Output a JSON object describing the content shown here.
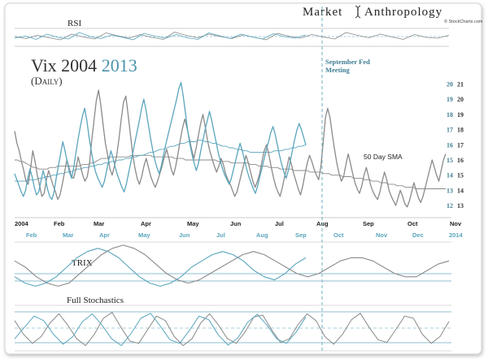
{
  "brand": {
    "word1": "Market",
    "word2": "Anthropology",
    "credit": "© StockCharts.com"
  },
  "colors": {
    "gray": "#8a8a8a",
    "blue": "#5aa5bd",
    "dark_blue": "#3f7f95",
    "frame": "#c8c8c8",
    "text": "#222222"
  },
  "chart_data": [
    {
      "type": "line",
      "panel": "main",
      "title": "Vix 2004",
      "title_accent": "2013",
      "subtitle": "(Daily)",
      "x_labels_2004": [
        "2004",
        "Feb",
        "Mar",
        "Apr",
        "May",
        "Jun",
        "Jul",
        "Aug",
        "Sep",
        "Oct",
        "Nov"
      ],
      "x_labels_2013": [
        "Feb",
        "Mar",
        "Apr",
        "May",
        "Jun",
        "Jul",
        "Aug",
        "Sep",
        "Oct",
        "Nov",
        "Dec",
        "2014"
      ],
      "y_ticks_2004": [
        13,
        14,
        15,
        16,
        17,
        18,
        19,
        20,
        21
      ],
      "y_ticks_2013": [
        12,
        13,
        14,
        15,
        16,
        17,
        18,
        19,
        20
      ],
      "ylim_2004": [
        12.2,
        21.4
      ],
      "ylim_2013": [
        11.2,
        20.4
      ],
      "annotations": [
        {
          "text1": "September Fed",
          "text2": "Meeting"
        },
        {
          "text": "50 Day SMA"
        }
      ],
      "series": [
        {
          "color": "gray",
          "values": [
            17.9,
            17.1,
            16.6,
            15.9,
            15.3,
            14.6,
            14.4,
            15.4,
            16.6,
            15.9,
            15.0,
            14.3,
            13.6,
            13.8,
            14.7,
            15.3,
            14.8,
            14.3,
            13.9,
            13.4,
            13.7,
            14.4,
            15.2,
            16.0,
            15.5,
            14.9,
            14.8,
            15.4,
            16.2,
            15.6,
            15.0,
            14.6,
            14.9,
            15.8,
            17.3,
            18.6,
            19.9,
            20.6,
            19.6,
            18.3,
            17.1,
            16.3,
            15.4,
            15.0,
            15.6,
            16.3,
            17.4,
            18.7,
            19.8,
            20.2,
            19.0,
            17.7,
            16.4,
            15.5,
            14.8,
            14.4,
            14.9,
            15.6,
            16.1,
            15.5,
            14.9,
            14.5,
            14.2,
            14.6,
            15.1,
            15.6,
            16.2,
            16.7,
            16.1,
            15.4,
            15.0,
            15.6,
            16.4,
            17.3,
            18.1,
            18.7,
            18.1,
            17.4,
            16.7,
            16.1,
            16.8,
            17.6,
            18.4,
            19.0,
            18.2,
            17.3,
            16.6,
            16.1,
            15.6,
            15.2,
            15.6,
            16.1,
            15.7,
            15.1,
            14.7,
            14.4,
            14.0,
            13.6,
            13.9,
            14.5,
            15.1,
            15.7,
            16.3,
            15.8,
            15.2,
            14.6,
            14.2,
            14.6,
            15.1,
            15.9,
            16.6,
            17.0,
            16.4,
            15.6,
            14.9,
            14.3,
            13.9,
            13.6,
            14.2,
            14.9,
            15.5,
            16.2,
            15.7,
            15.1,
            14.6,
            14.1,
            13.7,
            14.3,
            15.1,
            15.8,
            16.3,
            15.9,
            15.4,
            15.0,
            14.7,
            15.6,
            17.2,
            18.8,
            19.4,
            18.8,
            17.7,
            16.7,
            15.8,
            15.1,
            14.6,
            14.9,
            15.7,
            16.4,
            15.8,
            15.1,
            14.5,
            14.1,
            13.8,
            14.3,
            15.0,
            15.5,
            14.9,
            14.3,
            13.9,
            13.6,
            13.4,
            13.9,
            14.6,
            15.2,
            14.7,
            14.0,
            13.6,
            13.3,
            13.0,
            13.5,
            14.0,
            13.6,
            13.1,
            12.9,
            13.3,
            13.9,
            14.5,
            14.0,
            13.5,
            13.2,
            13.6,
            14.2,
            14.8,
            15.4,
            16.0,
            15.5,
            15.0,
            14.6,
            15.3,
            16.0,
            16.4
          ]
        },
        {
          "color": "blue",
          "values": [
            14.1,
            13.7,
            13.3,
            12.9,
            12.6,
            13.0,
            13.8,
            14.4,
            13.9,
            13.2,
            12.7,
            12.9,
            13.6,
            14.3,
            13.8,
            13.1,
            12.6,
            12.4,
            12.9,
            13.8,
            14.6,
            15.4,
            16.2,
            15.6,
            14.9,
            14.2,
            13.8,
            14.5,
            15.5,
            16.4,
            17.2,
            17.9,
            18.4,
            17.6,
            16.5,
            15.6,
            14.8,
            14.2,
            13.8,
            13.5,
            13.2,
            13.6,
            14.3,
            15.0,
            15.6,
            15.1,
            14.5,
            14.0,
            13.6,
            13.2,
            12.9,
            13.4,
            14.1,
            14.8,
            15.5,
            16.2,
            16.9,
            17.6,
            18.4,
            19.0,
            18.3,
            17.4,
            16.5,
            15.7,
            15.0,
            14.5,
            14.1,
            14.6,
            15.3,
            16.0,
            16.6,
            17.2,
            17.8,
            18.4,
            19.0,
            19.7,
            20.1,
            19.2,
            18.1,
            17.0,
            16.1,
            15.4,
            14.8,
            14.3,
            14.8,
            15.6,
            16.3,
            17.0,
            17.6,
            18.2,
            17.6,
            16.9,
            16.2,
            15.5,
            14.9,
            14.4,
            14.0,
            13.7,
            13.4,
            13.8,
            14.4,
            15.0,
            15.6,
            16.1,
            15.6,
            15.0,
            14.4,
            13.9,
            13.5,
            13.1,
            12.8,
            13.3,
            13.9,
            14.5,
            15.1,
            15.7,
            16.2,
            16.8,
            17.2,
            16.7,
            16.0,
            15.3,
            14.7,
            14.2,
            13.8,
            14.3,
            15.0,
            15.7,
            16.4,
            17.0,
            17.4,
            17.0,
            16.5,
            16.0
          ]
        },
        {
          "color": "gray",
          "values": [
            16.0,
            16.0,
            15.9,
            15.9,
            15.8,
            15.7,
            15.6,
            15.5,
            15.5,
            15.4,
            15.4,
            15.4,
            15.4,
            15.5,
            15.5,
            15.5,
            15.6,
            15.6,
            15.6,
            15.6,
            15.6,
            15.6,
            15.6,
            15.6,
            15.6,
            15.7,
            15.7,
            15.7,
            15.8,
            15.8,
            15.9,
            16.0,
            16.1,
            16.1,
            16.1,
            16.2,
            16.2,
            16.2,
            16.2,
            16.2,
            16.2,
            16.2,
            16.2,
            16.3,
            16.3,
            16.3,
            16.3,
            16.3,
            16.3,
            16.3,
            16.3,
            16.2,
            16.2,
            16.2,
            16.2,
            16.2,
            16.2,
            16.2,
            16.2,
            16.1,
            16.1,
            16.1,
            16.1,
            16.0,
            16.0,
            16.0,
            16.0,
            16.0,
            16.0,
            16.0,
            16.0,
            16.0,
            16.0,
            16.0,
            16.0,
            15.9,
            15.9,
            15.9,
            15.9,
            15.9,
            15.8,
            15.8,
            15.8,
            15.8,
            15.8,
            15.8,
            15.8,
            15.7,
            15.7,
            15.7,
            15.6,
            15.6,
            15.6,
            15.6,
            15.5,
            15.5,
            15.5,
            15.5,
            15.4,
            15.4,
            15.4,
            15.4,
            15.4,
            15.3,
            15.3,
            15.3,
            15.3,
            15.3,
            15.3,
            15.2,
            15.2,
            15.2,
            15.2,
            15.2,
            15.1,
            15.1,
            15.1,
            15.0,
            15.0,
            15.0,
            15.0,
            14.9,
            14.9,
            14.9,
            14.9,
            14.8,
            14.8,
            14.8,
            14.8,
            14.7,
            14.7,
            14.7,
            14.6,
            14.6,
            14.6,
            14.5,
            14.5,
            14.5,
            14.4,
            14.4,
            14.4,
            14.3,
            14.3,
            14.3,
            14.2,
            14.2,
            14.2,
            14.2,
            14.1,
            14.1,
            14.1,
            14.1,
            14.1,
            14.1,
            14.1,
            14.1,
            14.1,
            14.1,
            14.1,
            14.1
          ]
        },
        {
          "color": "blue",
          "values": [
            13.6,
            13.6,
            13.6,
            13.6,
            13.7,
            13.7,
            13.7,
            13.8,
            13.8,
            13.9,
            13.9,
            14.0,
            14.0,
            14.1,
            14.1,
            14.2,
            14.2,
            14.3,
            14.4,
            14.4,
            14.5,
            14.5,
            14.6,
            14.6,
            14.7,
            14.7,
            14.8,
            14.8,
            14.9,
            14.9,
            15.0,
            15.0,
            15.1,
            15.1,
            15.2,
            15.2,
            15.3,
            15.3,
            15.4,
            15.5,
            15.5,
            15.6,
            15.7,
            15.7,
            15.8,
            15.9,
            15.9,
            16.0,
            16.1,
            16.1,
            16.2,
            16.2,
            16.2,
            16.3,
            16.3,
            16.2,
            16.2,
            16.1,
            16.1,
            16.0,
            15.9,
            15.9,
            15.8,
            15.8,
            15.7,
            15.7,
            15.6,
            15.6,
            15.5,
            15.5,
            15.5,
            15.5,
            15.5,
            15.5,
            15.5,
            15.6,
            15.6,
            15.6,
            15.7,
            15.7,
            15.8,
            15.8,
            15.9,
            15.9,
            16.0
          ]
        }
      ]
    },
    {
      "type": "line",
      "panel": "rsi",
      "title": "RSI",
      "series": [
        {
          "color": "gray",
          "values": [
            52,
            47,
            55,
            49,
            44,
            58,
            51,
            46,
            61,
            54,
            48,
            57,
            50,
            45,
            63,
            55,
            49,
            58,
            52,
            47,
            56,
            50,
            44,
            60,
            53,
            48,
            57,
            51,
            46,
            62,
            55,
            49,
            58,
            51,
            45,
            57,
            50,
            48,
            55
          ]
        },
        {
          "color": "blue",
          "values": [
            48,
            53,
            45,
            58,
            50,
            46,
            62,
            52,
            47,
            56,
            50,
            44,
            60,
            53,
            48,
            57,
            49,
            45,
            61,
            54,
            47,
            58,
            51,
            46,
            59,
            52,
            48,
            56
          ]
        }
      ]
    },
    {
      "type": "line",
      "panel": "trix",
      "title": "TRIX",
      "series": [
        {
          "color": "gray",
          "values": [
            0.3,
            0.1,
            -0.2,
            -0.4,
            -0.5,
            -0.4,
            -0.1,
            0.2,
            0.5,
            0.7,
            0.8,
            0.7,
            0.5,
            0.2,
            -0.1,
            -0.3,
            -0.4,
            -0.3,
            -0.1,
            0.1,
            0.3,
            0.5,
            0.6,
            0.5,
            0.3,
            0.1,
            -0.1,
            -0.2,
            -0.1,
            0.1,
            0.3,
            0.4,
            0.4,
            0.3,
            0.1,
            -0.1,
            -0.2,
            -0.2,
            0.0,
            0.2,
            0.3
          ]
        },
        {
          "color": "blue",
          "values": [
            -0.2,
            -0.4,
            -0.5,
            -0.4,
            -0.2,
            0.1,
            0.4,
            0.6,
            0.7,
            0.6,
            0.4,
            0.1,
            -0.2,
            -0.4,
            -0.5,
            -0.4,
            -0.2,
            0.1,
            0.3,
            0.5,
            0.6,
            0.5,
            0.3,
            0.0,
            -0.2,
            -0.3,
            -0.1,
            0.2,
            0.4
          ]
        }
      ]
    },
    {
      "type": "line",
      "panel": "stochastics",
      "title": "Full Stochastics",
      "series": [
        {
          "color": "gray",
          "values": [
            70,
            40,
            20,
            35,
            65,
            85,
            60,
            30,
            15,
            40,
            75,
            88,
            55,
            25,
            20,
            50,
            80,
            70,
            35,
            15,
            30,
            65,
            85,
            60,
            30,
            20,
            45,
            78,
            82,
            50,
            22,
            30,
            62,
            85,
            70,
            35,
            18,
            40,
            72,
            86,
            55,
            28,
            22,
            50,
            80,
            75,
            40,
            20,
            35,
            68
          ]
        },
        {
          "color": "blue",
          "values": [
            30,
            55,
            80,
            70,
            40,
            18,
            35,
            68,
            85,
            60,
            30,
            15,
            42,
            75,
            86,
            58,
            28,
            20,
            48,
            80,
            72,
            38,
            16,
            32,
            66,
            84,
            60,
            30,
            20,
            45,
            78
          ]
        }
      ]
    }
  ]
}
